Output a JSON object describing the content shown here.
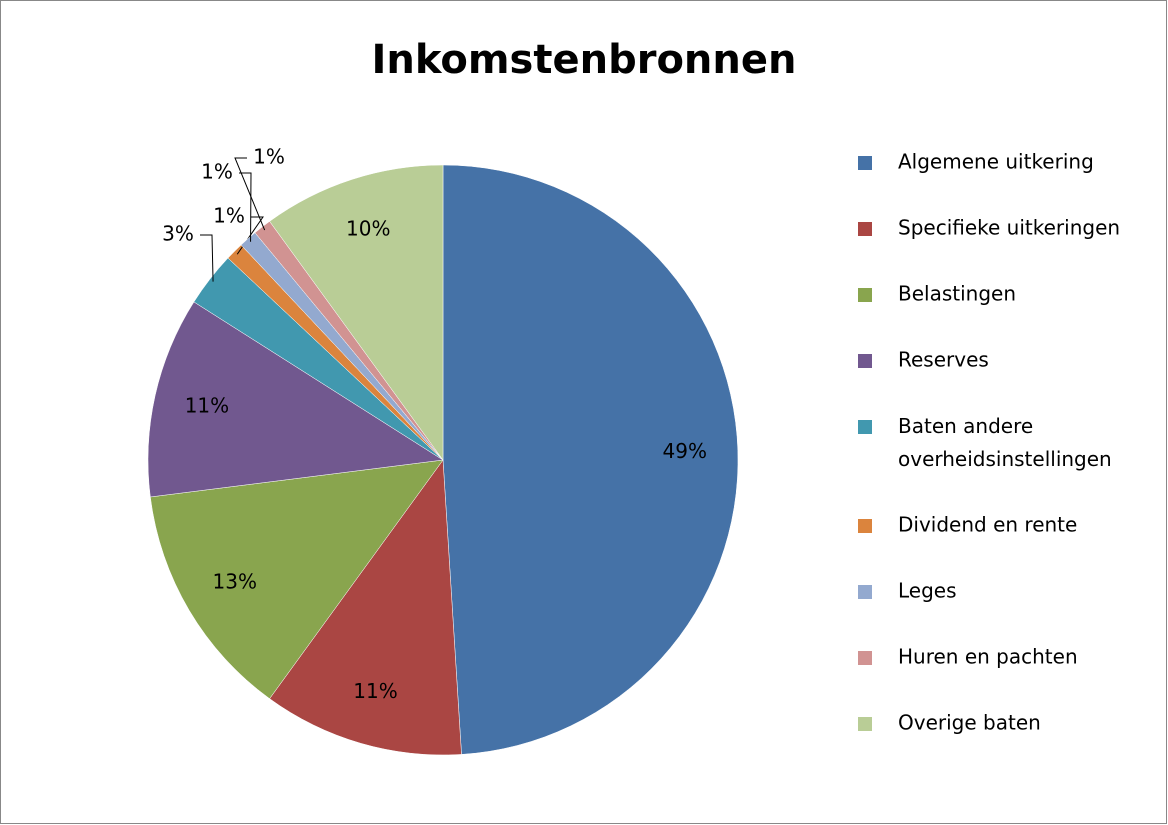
{
  "chart_data": {
    "type": "pie",
    "title": "Inkomstenbronnen",
    "categories": [
      "Algemene uitkering",
      "Specifieke uitkeringen",
      "Belastingen",
      "Reserves",
      "Baten andere overheidsinstellingen",
      "Dividend en rente",
      "Leges",
      "Huren en pachten",
      "Overige baten"
    ],
    "values": [
      49,
      11,
      13,
      11,
      3,
      1,
      1,
      1,
      10
    ],
    "value_labels": [
      "49%",
      "11%",
      "13%",
      "11%",
      "3%",
      "1%",
      "1%",
      "1%",
      "10%"
    ],
    "colors": [
      "#4572a7",
      "#aa4643",
      "#89a54e",
      "#71588f",
      "#4198af",
      "#db843d",
      "#93a9cf",
      "#d19392",
      "#b9cd96"
    ],
    "legend": "right"
  }
}
